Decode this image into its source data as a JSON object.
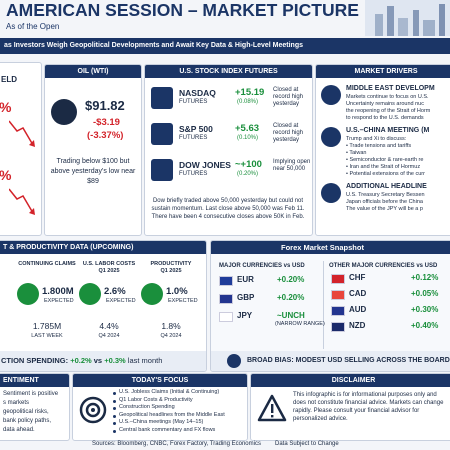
{
  "header": {
    "title": "AMERICAN SESSION – MARKET PICTURE",
    "subtitle": "As of the Open",
    "banner": "as Investors Weigh Geopolitical Developments and Await Key Data & High-Level Meetings"
  },
  "yield_panel": {
    "title": "ELD",
    "values": [
      "%",
      "%"
    ]
  },
  "oil": {
    "title": "OIL (WTI)",
    "price": "$91.82",
    "change": "-$3.19",
    "change_pct": "(-3.37%)",
    "note": "Trading below $100 but above yesterday's low near $89"
  },
  "futures": {
    "title": "U.S. STOCK INDEX FUTURES",
    "items": [
      {
        "name": "NASDAQ",
        "sub": "FUTURES",
        "change": "+15.19",
        "pct": "(0.08%)",
        "note": "Closed at record high yesterday"
      },
      {
        "name": "S&P 500",
        "sub": "FUTURES",
        "change": "+5.63",
        "pct": "(0.10%)",
        "note": "Closed at record high yesterday"
      },
      {
        "name": "DOW JONES",
        "sub": "FUTURES",
        "change": "~+100",
        "pct": "(0.20%)",
        "note": "Implying open near 50,000"
      }
    ],
    "note": "Dow briefly traded above 50,000 yesterday but could not sustain momentum. Last close above 50,000 was Feb 11. There have been 4 consecutive closes above 50K in Feb."
  },
  "drivers": {
    "title": "MARKET DRIVERS",
    "sections": [
      {
        "title": "MIDDLE EAST DEVELOPM",
        "lines": [
          "Markets continue to focus on U.S.",
          "Uncertainty remains around nuc",
          "the reopening of the Strait of Horm",
          "to respond to the U.S. demands"
        ]
      },
      {
        "title": "U.S.–CHINA MEETING (M",
        "lines": [
          "Trump and Xi to discuss:",
          "• Trade tensions and tariffs",
          "• Taiwan",
          "• Semiconductor & rare-earth re",
          "• Iran and the Strait of Hormuz",
          "• Potential extensions of the curr"
        ]
      },
      {
        "title": "ADDITIONAL HEADLINE",
        "lines": [
          "U.S. Treasury Secretary Bessen",
          "Japan officials before the China",
          "The value of the JPY will be a p"
        ]
      }
    ]
  },
  "labor": {
    "title": "T & PRODUCTIVITY DATA (UPCOMING)",
    "items": [
      {
        "name": "CONTINUING CLAIMS",
        "period": "",
        "expected": "1.800M",
        "expected_label": "EXPECTED",
        "previous": "1.785M",
        "previous_label": "LAST WEEK"
      },
      {
        "name": "U.S. LABOR COSTS",
        "period": "Q1 2025",
        "expected": "2.6%",
        "expected_label": "EXPECTED",
        "previous": "4.4%",
        "previous_label": "Q4 2024"
      },
      {
        "name": "PRODUCTIVITY",
        "period": "Q1 2025",
        "expected": "1.0%",
        "expected_label": "EXPECTED",
        "previous": "1.8%",
        "previous_label": "Q4 2024"
      }
    ],
    "spending": {
      "label": "CTION SPENDING:",
      "expected": "+0.2%",
      "vs": "vs",
      "previous": "+0.3%",
      "tail": "last month"
    }
  },
  "forex": {
    "title": "Forex Market Snapshot",
    "major_title": "MAJOR CURRENCIES vs USD",
    "major": [
      {
        "code": "EUR",
        "change": "+0.20%",
        "note": ""
      },
      {
        "code": "GBP",
        "change": "+0.20%",
        "note": ""
      },
      {
        "code": "JPY",
        "change": "~UNCH",
        "note": "(NARROW RANGE)"
      }
    ],
    "other_title": "OTHER MAJOR CURRENCIES vs USD",
    "other": [
      {
        "code": "CHF",
        "change": "+0.12%"
      },
      {
        "code": "CAD",
        "change": "+0.05%"
      },
      {
        "code": "AUD",
        "change": "+0.30%"
      },
      {
        "code": "NZD",
        "change": "+0.40%"
      }
    ],
    "bias": "BROAD BIAS:  MODEST USD SELLING ACROSS THE BOARD"
  },
  "sentiment": {
    "title": "ENTIMENT",
    "lines": [
      "Sentiment is positive",
      "s markets",
      "geopolitical risks,",
      "bank policy paths,",
      "data ahead."
    ]
  },
  "focus": {
    "title": "TODAY'S FOCUS",
    "items": [
      "U.S. Jobless Claims (Initial & Continuing)",
      "Q1 Labor Costs & Productivity",
      "Construction Spending",
      "Geopolitical headlines from the Middle East",
      "U.S.–China meetings (May 14–15)",
      "Central bank commentary and FX flows"
    ]
  },
  "disclaimer": {
    "title": "DISCLAIMER",
    "text": "This infographic is for informational purposes only and does not constitute financial advice. Markets can change rapidly. Please consult your financial advisor for personalized advice."
  },
  "footer": {
    "sources": "Sources: Bloomberg, CNBC, Forex Factory, Trading Economics",
    "note": "Data Subject to Change"
  }
}
